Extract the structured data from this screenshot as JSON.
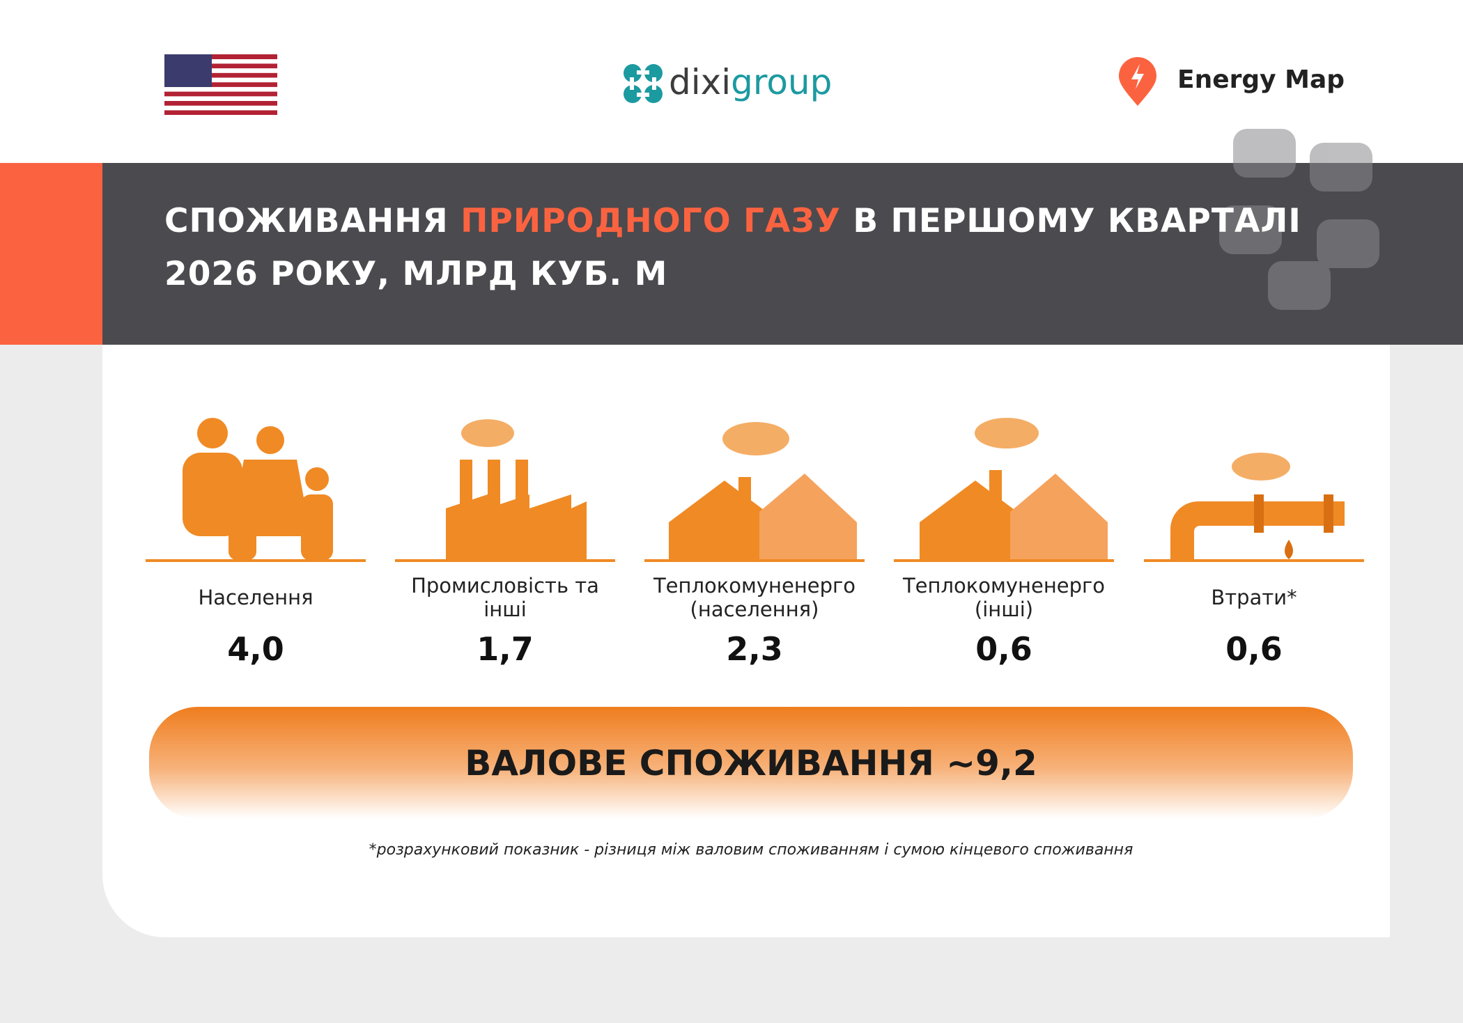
{
  "header": {
    "logo": [
      "dixi",
      "group"
    ],
    "brand": "Energy Map"
  },
  "title": {
    "parts": [
      "СПОЖИВАННЯ",
      "ПРИРОДНОГО ГАЗУ",
      "В ПЕРШОМУ КВАРТАЛІ 2026 РОКУ, МЛРД КУБ. М"
    ]
  },
  "items": [
    {
      "label": "Населення",
      "value": "4,0"
    },
    {
      "label": "Промисловість та інші",
      "value": "1,7"
    },
    {
      "label": "Теплокомуненерго (населення)",
      "value": "2,3"
    },
    {
      "label": "Теплокомуненерго (інші)",
      "value": "0,6"
    },
    {
      "label": "Втрати*",
      "value": "0,6"
    }
  ],
  "total": "ВАЛОВЕ СПОЖИВАННЯ ~9,2",
  "footnote": "*розрахунковий показник - різниця між валовим споживанням і сумою кінцевого споживання"
}
